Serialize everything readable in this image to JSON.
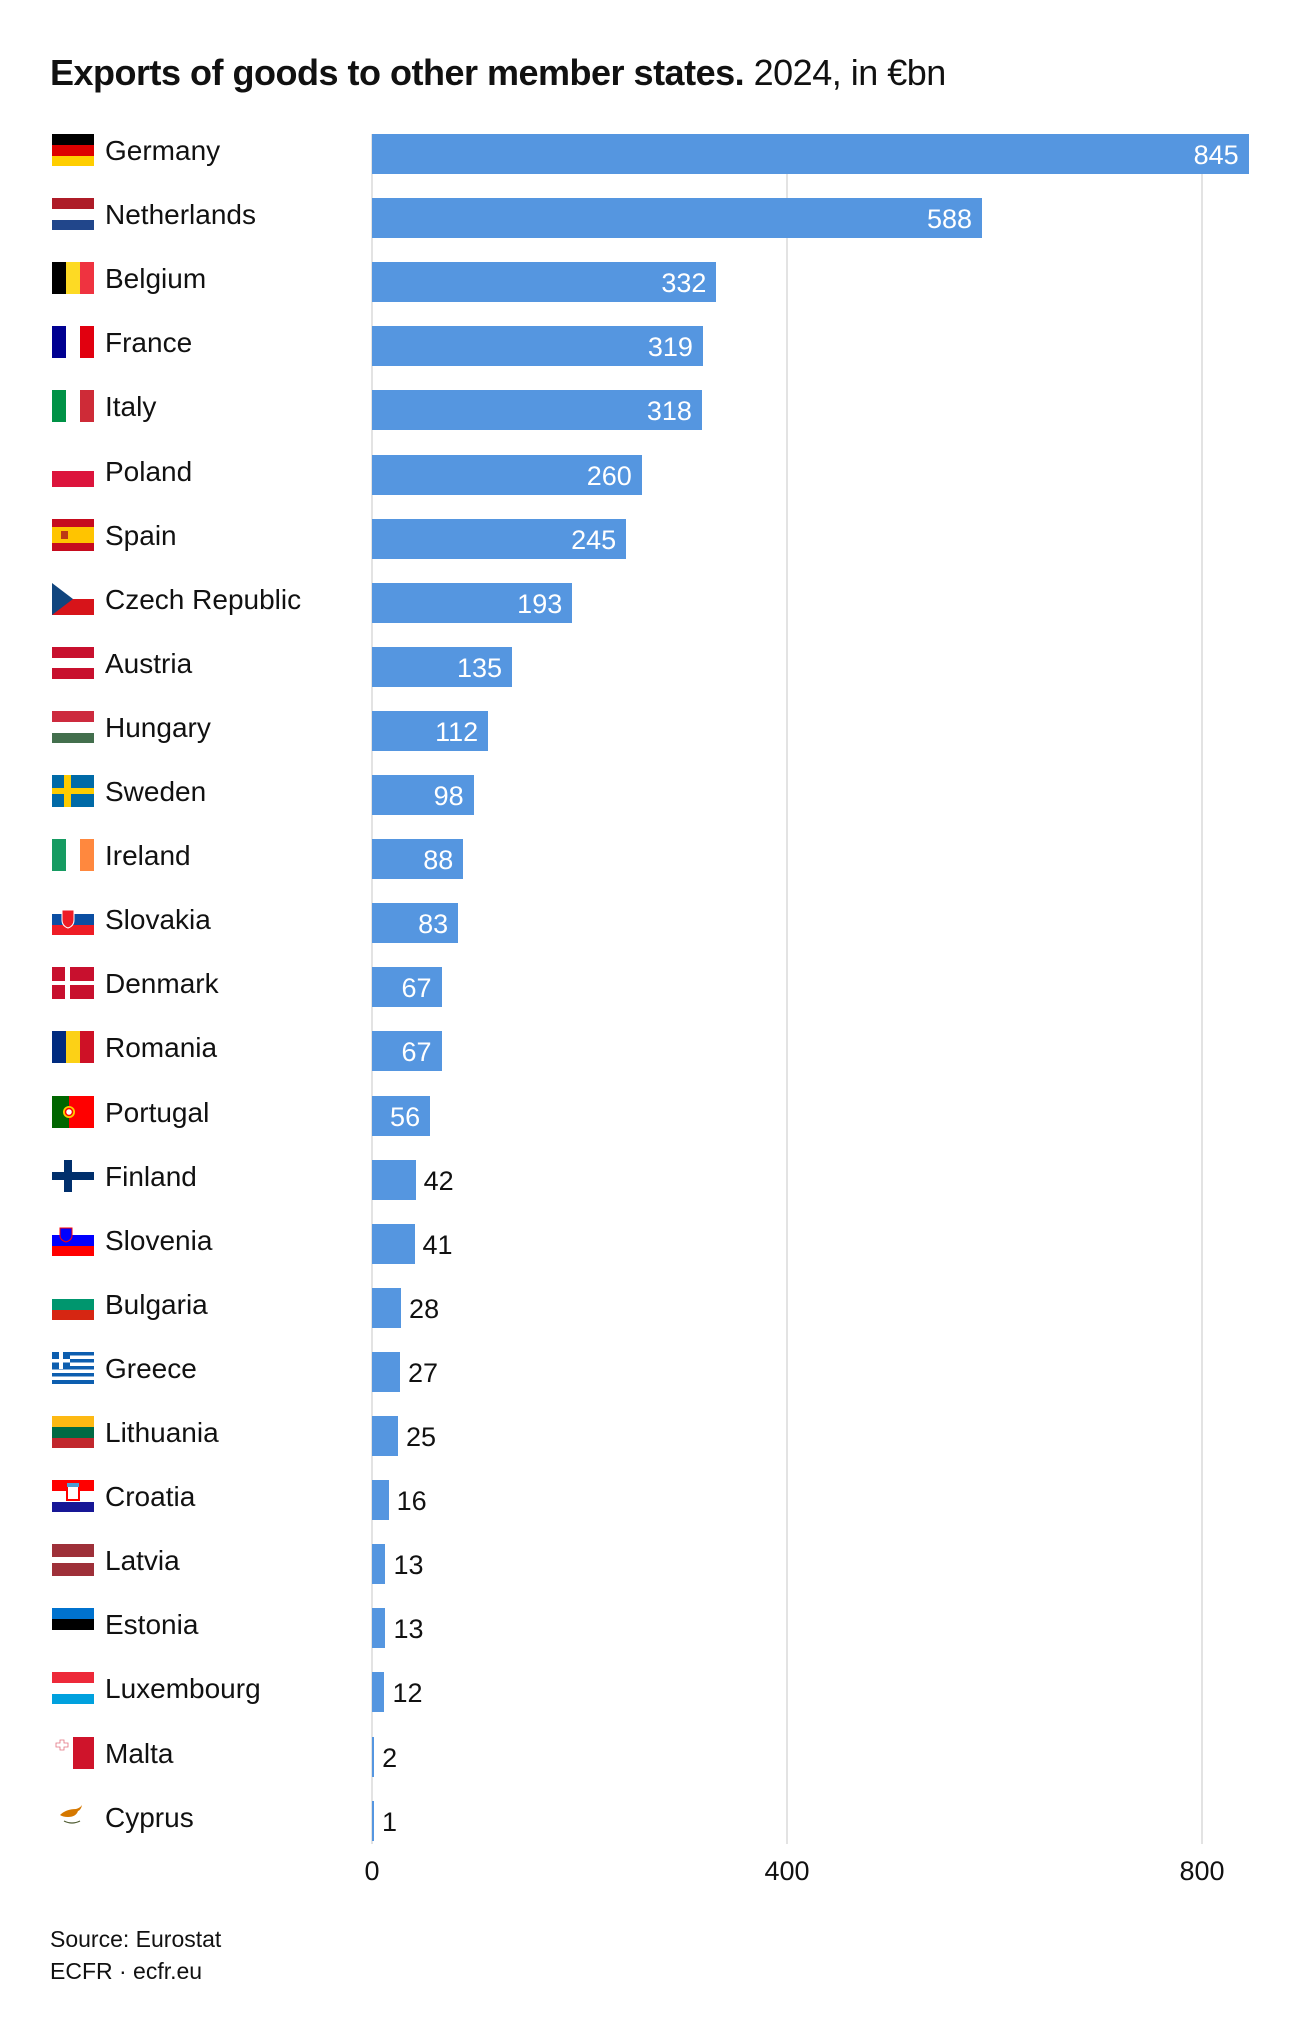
{
  "title": {
    "bold": "Exports of goods to other member states.",
    "rest": " 2024, in €bn"
  },
  "chart_data": {
    "type": "bar",
    "orientation": "horizontal",
    "title": "Exports of goods to other member states. 2024, in €bn",
    "xlabel": "",
    "ylabel": "",
    "xlim": [
      0,
      845
    ],
    "xticks": [
      0,
      400,
      800
    ],
    "grid": true,
    "bar_color": "#5596e0",
    "categories": [
      "Germany",
      "Netherlands",
      "Belgium",
      "France",
      "Italy",
      "Poland",
      "Spain",
      "Czech Republic",
      "Austria",
      "Hungary",
      "Sweden",
      "Ireland",
      "Slovakia",
      "Denmark",
      "Romania",
      "Portugal",
      "Finland",
      "Slovenia",
      "Bulgaria",
      "Greece",
      "Lithuania",
      "Croatia",
      "Latvia",
      "Estonia",
      "Luxembourg",
      "Malta",
      "Cyprus"
    ],
    "values": [
      845,
      588,
      332,
      319,
      318,
      260,
      245,
      193,
      135,
      112,
      98,
      88,
      83,
      67,
      67,
      56,
      42,
      41,
      28,
      27,
      25,
      16,
      13,
      13,
      12,
      2,
      1
    ]
  },
  "rows": [
    {
      "name": "Germany",
      "value": "845",
      "flag": "germany-flag-icon"
    },
    {
      "name": "Netherlands",
      "value": "588",
      "flag": "netherlands-flag-icon"
    },
    {
      "name": "Belgium",
      "value": "332",
      "flag": "belgium-flag-icon"
    },
    {
      "name": "France",
      "value": "319",
      "flag": "france-flag-icon"
    },
    {
      "name": "Italy",
      "value": "318",
      "flag": "italy-flag-icon"
    },
    {
      "name": "Poland",
      "value": "260",
      "flag": "poland-flag-icon"
    },
    {
      "name": "Spain",
      "value": "245",
      "flag": "spain-flag-icon"
    },
    {
      "name": "Czech Republic",
      "value": "193",
      "flag": "czech-flag-icon"
    },
    {
      "name": "Austria",
      "value": "135",
      "flag": "austria-flag-icon"
    },
    {
      "name": "Hungary",
      "value": "112",
      "flag": "hungary-flag-icon"
    },
    {
      "name": "Sweden",
      "value": "98",
      "flag": "sweden-flag-icon"
    },
    {
      "name": "Ireland",
      "value": "88",
      "flag": "ireland-flag-icon"
    },
    {
      "name": "Slovakia",
      "value": "83",
      "flag": "slovakia-flag-icon"
    },
    {
      "name": "Denmark",
      "value": "67",
      "flag": "denmark-flag-icon"
    },
    {
      "name": "Romania",
      "value": "67",
      "flag": "romania-flag-icon"
    },
    {
      "name": "Portugal",
      "value": "56",
      "flag": "portugal-flag-icon"
    },
    {
      "name": "Finland",
      "value": "42",
      "flag": "finland-flag-icon"
    },
    {
      "name": "Slovenia",
      "value": "41",
      "flag": "slovenia-flag-icon"
    },
    {
      "name": "Bulgaria",
      "value": "28",
      "flag": "bulgaria-flag-icon"
    },
    {
      "name": "Greece",
      "value": "27",
      "flag": "greece-flag-icon"
    },
    {
      "name": "Lithuania",
      "value": "25",
      "flag": "lithuania-flag-icon"
    },
    {
      "name": "Croatia",
      "value": "16",
      "flag": "croatia-flag-icon"
    },
    {
      "name": "Latvia",
      "value": "13",
      "flag": "latvia-flag-icon"
    },
    {
      "name": "Estonia",
      "value": "13",
      "flag": "estonia-flag-icon"
    },
    {
      "name": "Luxembourg",
      "value": "12",
      "flag": "luxembourg-flag-icon"
    },
    {
      "name": "Malta",
      "value": "2",
      "flag": "malta-flag-icon"
    },
    {
      "name": "Cyprus",
      "value": "1",
      "flag": "cyprus-flag-icon"
    }
  ],
  "axis": {
    "ticks": [
      "0",
      "400",
      "800"
    ]
  },
  "footer": {
    "source": "Source: Eurostat",
    "credit": "ECFR · ecfr.eu"
  }
}
